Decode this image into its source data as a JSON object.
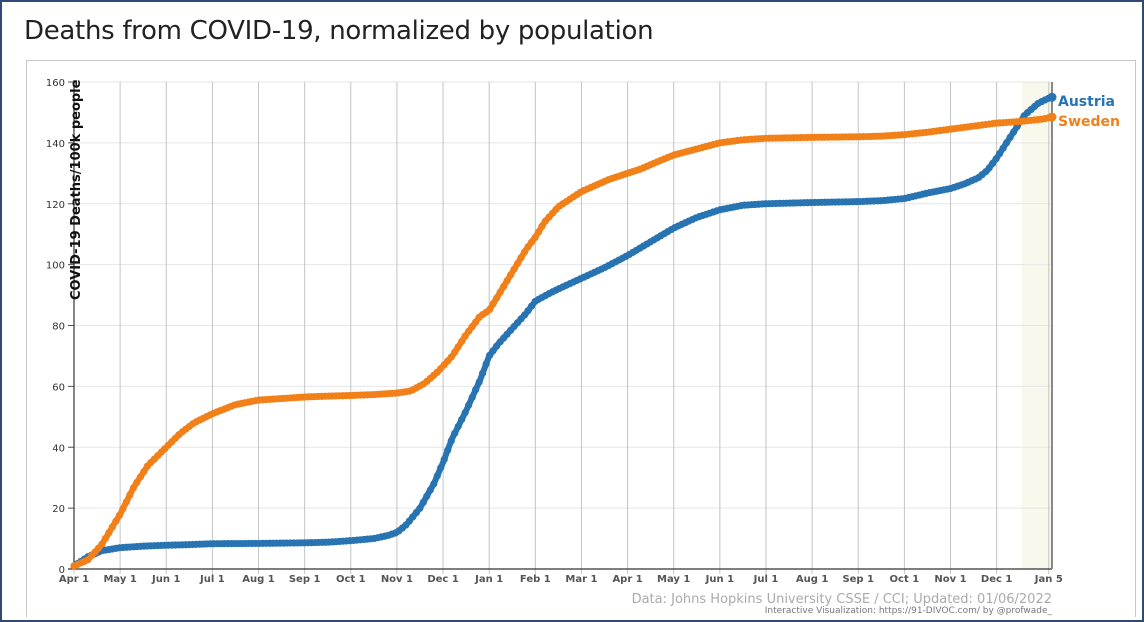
{
  "page": {
    "title": "Deaths from COVID-19, normalized by population"
  },
  "chart_data": {
    "type": "scatter",
    "title": "Deaths from COVID-19, normalized by population",
    "xlabel": "",
    "ylabel": "COVID-19 Deaths/100k people",
    "ylim": [
      0,
      160
    ],
    "yticks": [
      0,
      20,
      40,
      60,
      80,
      100,
      120,
      140,
      160
    ],
    "xlim_months": [
      0,
      21.2
    ],
    "xticks": [
      {
        "label": "Apr 1",
        "pos": 0
      },
      {
        "label": "May 1",
        "pos": 1
      },
      {
        "label": "Jun 1",
        "pos": 2
      },
      {
        "label": "Jul 1",
        "pos": 3
      },
      {
        "label": "Aug 1",
        "pos": 4
      },
      {
        "label": "Sep 1",
        "pos": 5
      },
      {
        "label": "Oct 1",
        "pos": 6
      },
      {
        "label": "Nov 1",
        "pos": 7
      },
      {
        "label": "Dec 1",
        "pos": 8
      },
      {
        "label": "Jan 1",
        "pos": 9
      },
      {
        "label": "Feb 1",
        "pos": 10
      },
      {
        "label": "Mar 1",
        "pos": 11
      },
      {
        "label": "Apr 1",
        "pos": 12
      },
      {
        "label": "May 1",
        "pos": 13
      },
      {
        "label": "Jun 1",
        "pos": 14
      },
      {
        "label": "Jul 1",
        "pos": 15
      },
      {
        "label": "Aug 1",
        "pos": 16
      },
      {
        "label": "Sep 1",
        "pos": 17
      },
      {
        "label": "Oct 1",
        "pos": 18
      },
      {
        "label": "Nov 1",
        "pos": 19
      },
      {
        "label": "Dec 1",
        "pos": 20
      },
      {
        "label": "Jan 5",
        "pos": 21.13
      }
    ],
    "grid": true,
    "series": [
      {
        "name": "Austria",
        "color": "#2874b2",
        "x": [
          0,
          0.3,
          0.6,
          1.0,
          1.5,
          2.0,
          2.5,
          3.0,
          4.0,
          5.0,
          5.5,
          6.0,
          6.5,
          6.8,
          7.0,
          7.2,
          7.5,
          7.8,
          8.0,
          8.2,
          8.5,
          8.8,
          9.0,
          9.2,
          9.5,
          9.8,
          10.0,
          10.3,
          10.5,
          11.0,
          11.5,
          12.0,
          12.5,
          13.0,
          13.5,
          14.0,
          14.5,
          15.0,
          16.0,
          17.0,
          17.5,
          18.0,
          18.5,
          19.0,
          19.3,
          19.6,
          19.8,
          20.0,
          20.3,
          20.6,
          20.9,
          21.1,
          21.2
        ],
        "values": [
          1,
          4,
          6,
          7,
          7.5,
          7.8,
          8.0,
          8.3,
          8.4,
          8.6,
          8.8,
          9.3,
          10,
          11,
          12,
          14.5,
          20,
          28,
          35,
          43,
          52,
          62,
          70,
          74,
          79,
          84,
          88,
          90.5,
          92,
          95.5,
          99,
          103,
          107.5,
          112,
          115.5,
          118,
          119.5,
          120,
          120.4,
          120.7,
          121,
          121.7,
          123.5,
          125,
          126.5,
          128.5,
          131,
          135,
          142,
          149,
          153,
          154.5,
          155
        ]
      },
      {
        "name": "Sweden",
        "color": "#f28019",
        "x": [
          0,
          0.3,
          0.6,
          1.0,
          1.3,
          1.6,
          2.0,
          2.3,
          2.6,
          3.0,
          3.5,
          4.0,
          4.5,
          5.0,
          5.5,
          6.0,
          6.5,
          7.0,
          7.3,
          7.6,
          7.9,
          8.2,
          8.5,
          8.8,
          9.0,
          9.2,
          9.4,
          9.6,
          9.8,
          10.0,
          10.2,
          10.5,
          10.8,
          11.0,
          11.3,
          11.6,
          12.0,
          12.3,
          12.6,
          13.0,
          13.5,
          14.0,
          14.5,
          15.0,
          16.0,
          17.0,
          17.5,
          18.0,
          18.5,
          19.0,
          19.5,
          20.0,
          20.5,
          21.0,
          21.2
        ],
        "values": [
          1,
          3,
          8,
          18,
          27,
          34,
          40,
          44.5,
          48,
          51,
          54,
          55.5,
          56,
          56.5,
          56.8,
          57,
          57.3,
          57.8,
          58.5,
          61,
          65,
          70,
          77,
          83,
          85,
          90,
          95,
          100,
          105,
          109,
          114,
          119,
          122,
          124,
          126,
          128,
          130,
          131.5,
          133.5,
          136,
          138,
          140,
          141,
          141.5,
          141.8,
          142,
          142.2,
          142.7,
          143.5,
          144.5,
          145.5,
          146.5,
          147,
          147.8,
          148.5
        ]
      }
    ],
    "annotations": {
      "source": "Data: Johns Hopkins University CSSE / CCI; Updated: 01/06/2022",
      "credit": "Interactive Visualization: https://91-DIVOC.com/ by @profwade_"
    }
  }
}
